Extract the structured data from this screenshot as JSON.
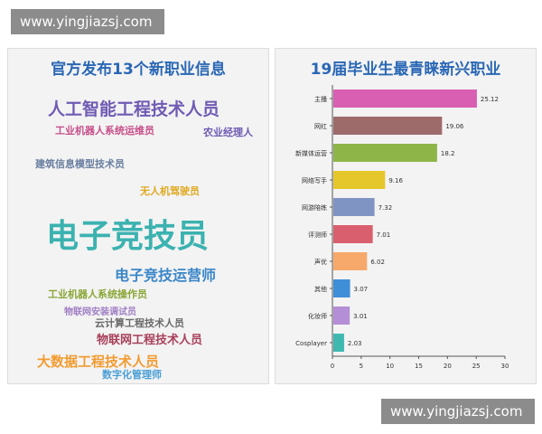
{
  "watermarks": {
    "top": "www.yingjiazsj.com",
    "bottom": "www.yingjiazsj.com"
  },
  "left_panel": {
    "title": "官方发布13个新职业信息",
    "words": [
      {
        "text": "人工智能工程技术人员",
        "color": "#6f5bb3"
      },
      {
        "text": "工业机器人系统运维员",
        "color": "#c64f8a"
      },
      {
        "text": "农业经理人",
        "color": "#6f5bb3"
      },
      {
        "text": "建筑信息模型技术员",
        "color": "#6a7fa0"
      },
      {
        "text": "无人机驾驶员",
        "color": "#e0a91f"
      },
      {
        "text": "电子竞技员",
        "color": "#3bb2b0"
      },
      {
        "text": "电子竞技运营师",
        "color": "#3a86c8"
      },
      {
        "text": "工业机器人系统操作员",
        "color": "#8aa637"
      },
      {
        "text": "物联网安装调试员",
        "color": "#a07fc4"
      },
      {
        "text": "云计算工程技术人员",
        "color": "#6a6a6a"
      },
      {
        "text": "物联网工程技术人员",
        "color": "#a8405a"
      },
      {
        "text": "大数据工程技术人员",
        "color": "#f29b2f"
      },
      {
        "text": "数字化管理师",
        "color": "#4a9fd6"
      }
    ]
  },
  "chart_data": {
    "type": "bar",
    "orientation": "horizontal",
    "title": "19届毕业生最青睐新兴职业",
    "categories": [
      "主播",
      "网红",
      "新媒体运营",
      "网络写手",
      "网游陪练",
      "评测师",
      "声优",
      "其他",
      "化妆师",
      "Cosplayer"
    ],
    "values": [
      25.12,
      19.06,
      18.2,
      9.16,
      7.32,
      7.01,
      6.02,
      3.07,
      3.01,
      2.03
    ],
    "value_labels": [
      "25.12",
      "19.06",
      "18.2",
      "9.16",
      "7.32",
      "7.01",
      "6.02",
      "3.07",
      "3.01",
      "2.03"
    ],
    "colors": [
      "#d95fb3",
      "#9e6b6b",
      "#8eb548",
      "#e5c72c",
      "#8094c4",
      "#d95f6e",
      "#f7a96b",
      "#3f8fd8",
      "#b48ed6",
      "#3fb8b0"
    ],
    "xlim": [
      0,
      30
    ],
    "xticks": [
      "0",
      "5",
      "10",
      "15",
      "20",
      "25",
      "30"
    ],
    "xlabel": "",
    "ylabel": "",
    "grid": false,
    "legend": "none"
  }
}
